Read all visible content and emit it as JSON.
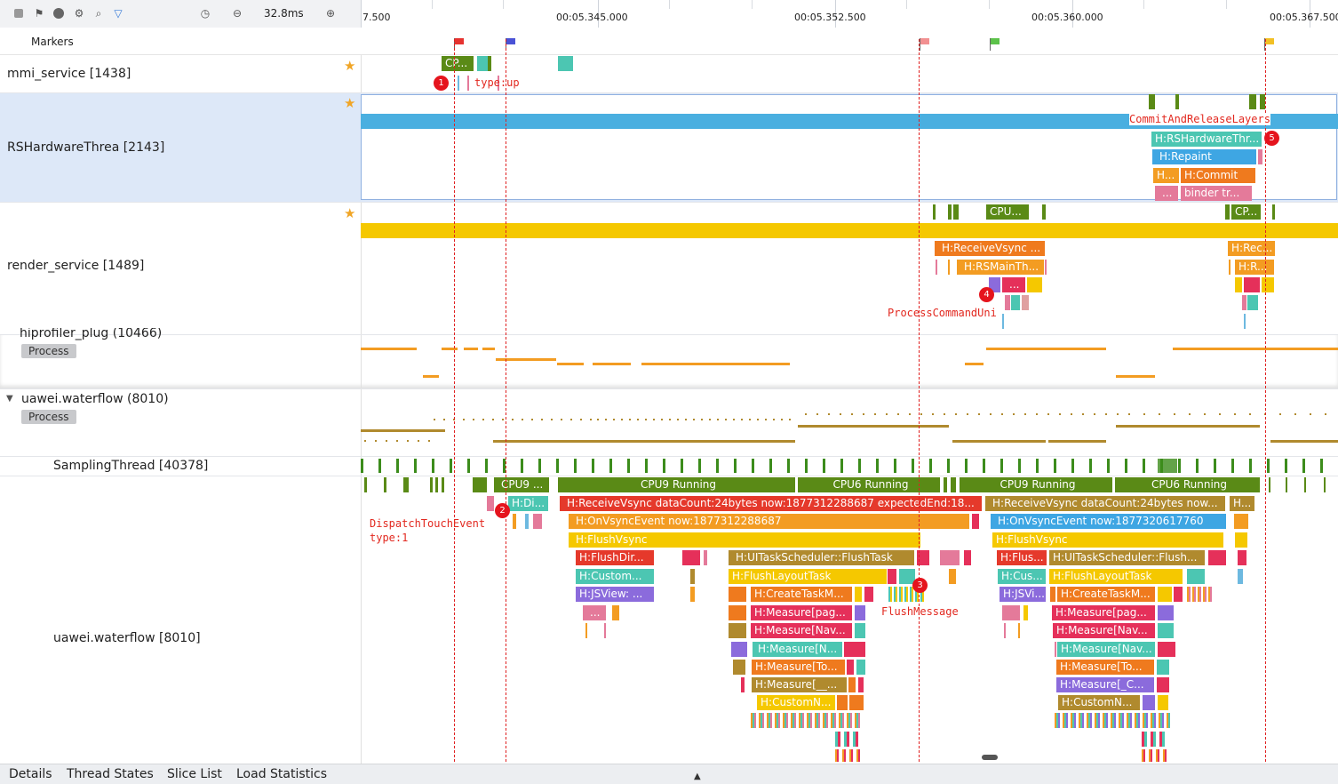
{
  "toolbar": {
    "icons": [
      "stop-icon",
      "flag-icon",
      "info-icon",
      "filter-graph-icon",
      "search-icon",
      "funnel-icon",
      "clock-icon",
      "zoom-out-icon",
      "zoom-in-icon"
    ],
    "zoom_value": "32.8ms"
  },
  "ruler": {
    "labels": [
      "7.500",
      "00:05.345.000",
      "00:05.352.500",
      "00:05.360.000",
      "00:05.367.500"
    ]
  },
  "markers": {
    "label": "Markers",
    "flag_colors": [
      "#e6322f",
      "#4a52d6",
      "#f29091",
      "#5cc24a",
      "#f2c025"
    ]
  },
  "lanes": {
    "mmi": "mmi_service [1438]",
    "rs_hw": "RSHardwareThrea [2143]",
    "render": "render_service [1489]",
    "profiler": "hiprofiler_plug (10466)",
    "profiler_pill": "Process",
    "waterflow_proc": "uawei.waterflow (8010)",
    "waterflow_pill": "Process",
    "sampling": "SamplingThread [40378]",
    "waterflow_thread": "uawei.waterflow [8010]"
  },
  "slices": {
    "mmi_cpu": "CP...",
    "rs_commit_release": "CommitAndReleaseLayers",
    "rs_hardware_thr": "H:RSHardwareThr...",
    "rs_repaint": "H:Repaint",
    "rs_h": "H...",
    "rs_commit": "H:Commit",
    "rs_dots": "...",
    "rs_binder": "binder tr...",
    "render_cpu1": "CPU...",
    "render_cpu2": "CP...",
    "render_receive": "H:ReceiveVsync ...",
    "render_main": "H:RSMainTh...",
    "render_dots": "...",
    "render_rec2": "H:Rec...",
    "render_r2": "H:R...",
    "cpu9_a": "CPU9 ...",
    "cpu9_running": "CPU9 Running",
    "cpu6_running": "CPU6 Running",
    "cpu9_running2": "CPU9 Running",
    "cpu6_running2": "CPU6 Running",
    "h_di": "H:Di...",
    "receive_vsync1": "H:ReceiveVsync dataCount:24bytes now:1877312288687 expectedEnd:18...",
    "receive_vsync2": "H:ReceiveVsync dataCount:24bytes now...",
    "h_short": "H...",
    "on_vsync1": "H:OnVsyncEvent now:1877312288687",
    "on_vsync2": "H:OnVsyncEvent now:1877320617760",
    "flush_vsync1": "H:FlushVsync",
    "flush_vsync2": "H:FlushVsync",
    "flush_dir": "H:FlushDir...",
    "ui_task1": "H:UITaskScheduler::FlushTask",
    "flus2": "H:Flus...",
    "ui_task2": "H:UITaskScheduler::Flush...",
    "custom1": "H:Custom...",
    "flush_layout1": "H:FlushLayoutTask",
    "cus2": "H:Cus...",
    "flush_layout2": "H:FlushLayoutTask",
    "jsview1": "H:JSView: ...",
    "create_task1": "H:CreateTaskM...",
    "jsvi2": "H:JSVi...",
    "create_task2": "H:CreateTaskM...",
    "dots1": "...",
    "measure_pag1": "H:Measure[pag...",
    "measure_pag2": "H:Measure[pag...",
    "measure_nav1": "H:Measure[Nav...",
    "measure_nav2": "H:Measure[Nav...",
    "measure_n1": "H:Measure[N...",
    "measure_nav3": "H:Measure[Nav...",
    "measure_to1": "H:Measure[To...",
    "measure_to2": "H:Measure[To...",
    "measure_us1": "H:Measure[__...",
    "measure_c2": "H:Measure[_C...",
    "customn1": "H:CustomN...",
    "customn2": "H:CustomN..."
  },
  "annotations": {
    "n1": "1",
    "n2": "2",
    "n3": "3",
    "n4": "4",
    "n5": "5",
    "type_up": "type:up",
    "dispatch": "DispatchTouchEvent",
    "type1": "type:1",
    "process_cmd": "ProcessCommandUni",
    "flush_msg": "FlushMessage"
  },
  "bottom_tabs": [
    "Details",
    "Thread States",
    "Slice List",
    "Load Statistics"
  ],
  "colors": {
    "selected_lane": "#dde8f8",
    "blue_track": "#4aafe0",
    "yellow_track": "#f5c800",
    "marker_line": "#e02020"
  }
}
